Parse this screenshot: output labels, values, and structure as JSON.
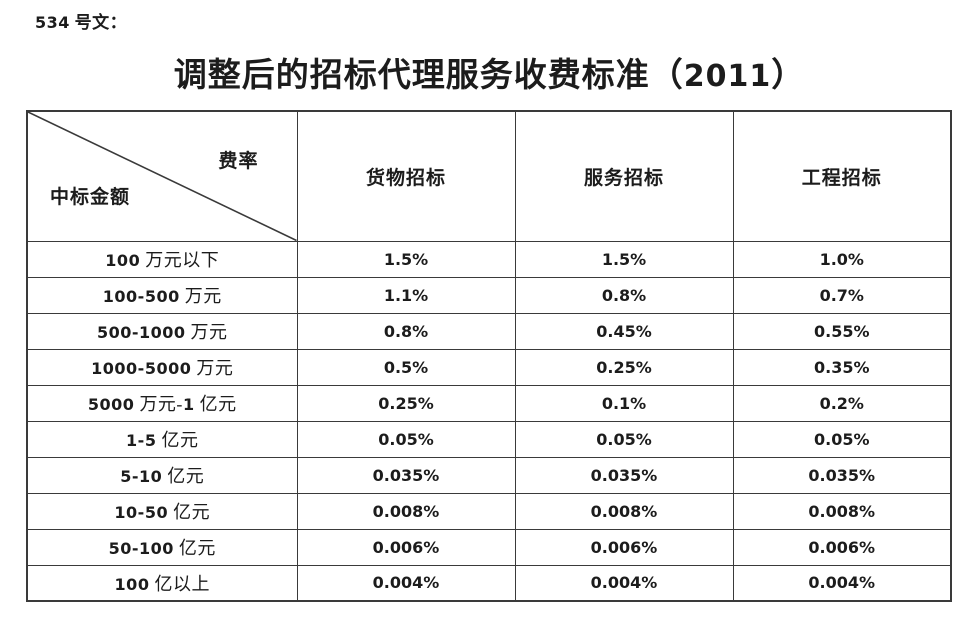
{
  "theme": {
    "text_color": "#1c1c1c",
    "border_color": "#3a3a3a",
    "background_color": "#ffffff"
  },
  "doc": {
    "ref_label": "534 号文：",
    "title": "调整后的招标代理服务收费标准（2011）"
  },
  "table": {
    "corner": {
      "top_right": "费率",
      "bottom_left": "中标金额"
    },
    "columns": [
      "货物招标",
      "服务招标",
      "工程招标"
    ],
    "rows": [
      {
        "label": "100 万元以下",
        "values": [
          "1.5%",
          "1.5%",
          "1.0%"
        ]
      },
      {
        "label": "100-500 万元",
        "values": [
          "1.1%",
          "0.8%",
          "0.7%"
        ]
      },
      {
        "label": "500-1000 万元",
        "values": [
          "0.8%",
          "0.45%",
          "0.55%"
        ]
      },
      {
        "label": "1000-5000 万元",
        "values": [
          "0.5%",
          "0.25%",
          "0.35%"
        ]
      },
      {
        "label": "5000 万元-1 亿元",
        "values": [
          "0.25%",
          "0.1%",
          "0.2%"
        ]
      },
      {
        "label": "1-5 亿元",
        "values": [
          "0.05%",
          "0.05%",
          "0.05%"
        ]
      },
      {
        "label": "5-10 亿元",
        "values": [
          "0.035%",
          "0.035%",
          "0.035%"
        ]
      },
      {
        "label": "10-50 亿元",
        "values": [
          "0.008%",
          "0.008%",
          "0.008%"
        ]
      },
      {
        "label": "50-100 亿元",
        "values": [
          "0.006%",
          "0.006%",
          "0.006%"
        ]
      },
      {
        "label": "100 亿以上",
        "values": [
          "0.004%",
          "0.004%",
          "0.004%"
        ]
      }
    ]
  }
}
